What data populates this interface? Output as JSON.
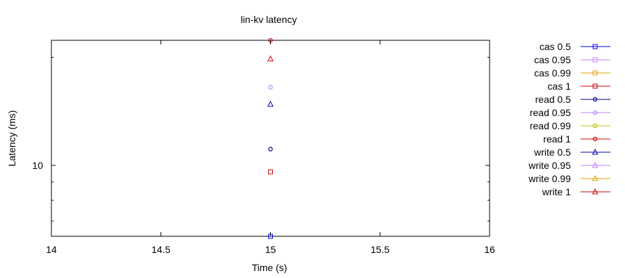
{
  "chart_data": {
    "type": "scatter",
    "title": "lin-kv latency",
    "xlabel": "Time (s)",
    "ylabel": "Latency (ms)",
    "xlim": [
      14,
      16
    ],
    "ylim": [
      6.35,
      22.3
    ],
    "yscale": "log",
    "xticks": [
      14,
      14.5,
      15,
      15.5,
      16
    ],
    "xtick_labels": [
      "14",
      "14.5",
      "15",
      "15.5",
      "16"
    ],
    "yticks": [
      10
    ],
    "ytick_labels": [
      "10"
    ],
    "grid": false,
    "legend_position": "outside-right",
    "series": [
      {
        "name": "cas 0.5",
        "color": "#0000ee",
        "marker": "square",
        "points": [
          {
            "x": 15,
            "y": 6.35
          }
        ]
      },
      {
        "name": "cas 0.95",
        "color": "#c080ff",
        "marker": "square",
        "points": []
      },
      {
        "name": "cas 0.99",
        "color": "#e0a000",
        "marker": "square",
        "points": []
      },
      {
        "name": "cas 1",
        "color": "#cc0000",
        "marker": "square",
        "points": [
          {
            "x": 15,
            "y": 9.6
          }
        ]
      },
      {
        "name": "read 0.5",
        "color": "#000080",
        "marker": "circle",
        "points": [
          {
            "x": 15,
            "y": 11.1
          }
        ]
      },
      {
        "name": "read 0.95",
        "color": "#c080ff",
        "marker": "circle",
        "points": [
          {
            "x": 15,
            "y": 16.5
          }
        ]
      },
      {
        "name": "read 0.99",
        "color": "#c0c000",
        "marker": "circle",
        "points": []
      },
      {
        "name": "read 1",
        "color": "#cc0000",
        "marker": "circle",
        "points": [
          {
            "x": 15,
            "y": 22.3
          }
        ]
      },
      {
        "name": "write 0.5",
        "color": "#0000aa",
        "marker": "triangle",
        "points": [
          {
            "x": 15,
            "y": 14.8
          }
        ]
      },
      {
        "name": "write 0.95",
        "color": "#c080ff",
        "marker": "triangle",
        "points": []
      },
      {
        "name": "write 0.99",
        "color": "#e0a000",
        "marker": "triangle",
        "points": []
      },
      {
        "name": "write 1",
        "color": "#cc0000",
        "marker": "triangle",
        "points": [
          {
            "x": 15,
            "y": 19.8
          }
        ]
      }
    ]
  }
}
